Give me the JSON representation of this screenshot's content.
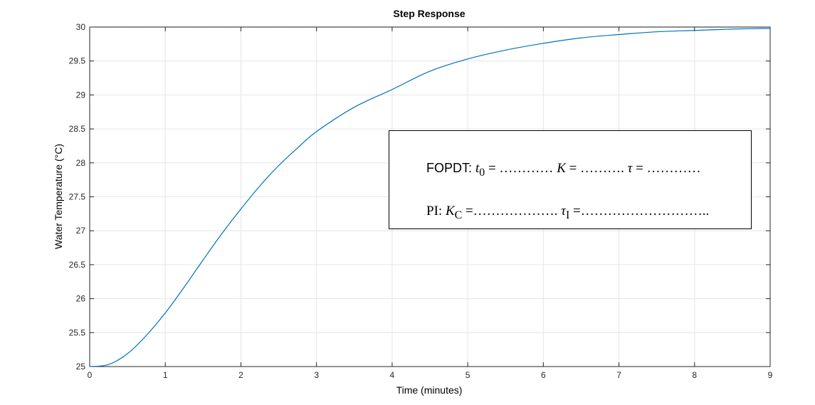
{
  "chart_data": {
    "type": "line",
    "title": "Step Response",
    "xlabel": "Time (minutes)",
    "ylabel": "Water Temperature (°C)",
    "xlim": [
      0,
      9
    ],
    "ylim": [
      25,
      30
    ],
    "xticks": [
      0,
      1,
      2,
      3,
      4,
      5,
      6,
      7,
      8,
      9
    ],
    "yticks": [
      25,
      25.5,
      26,
      26.5,
      27,
      27.5,
      28,
      28.5,
      29,
      29.5,
      30
    ],
    "ytick_labels": [
      "25",
      "25.5",
      "26",
      "26.5",
      "27",
      "27.5",
      "28",
      "28.5",
      "29",
      "29.5",
      "30"
    ],
    "grid": true,
    "reference_line": {
      "y": 30,
      "style": "dotted"
    },
    "series": [
      {
        "color": "#0072BD",
        "x": [
          0,
          0.25,
          0.5,
          0.75,
          1.0,
          1.25,
          1.5,
          1.75,
          2.0,
          2.25,
          2.5,
          2.75,
          3.0,
          3.5,
          4.0,
          4.5,
          5.0,
          5.5,
          6.0,
          6.5,
          7.0,
          7.5,
          8.0,
          8.5,
          9.0
        ],
        "y": [
          25.0,
          25.03,
          25.19,
          25.46,
          25.79,
          26.17,
          26.57,
          26.96,
          27.32,
          27.66,
          27.96,
          28.22,
          28.46,
          28.82,
          29.08,
          29.35,
          29.53,
          29.66,
          29.76,
          29.84,
          29.89,
          29.93,
          29.95,
          29.97,
          29.98
        ]
      }
    ]
  },
  "annotation": {
    "line1_prefix": "FOPDT: ",
    "line1_math_t0": "t",
    "line1_math_t0_sub": "0",
    "line1_rest1": " = ………… ",
    "line1_math_k": "K",
    "line1_rest2": " = ………. ",
    "line1_math_tau": "τ",
    "line1_rest3": " = …………",
    "line2_prefix": "PI:    ",
    "line2_math_kc": "K",
    "line2_math_kc_sub": "C",
    "line2_rest1": " =………………. ",
    "line2_math_taui": "τ",
    "line2_math_taui_sub": "I",
    "line2_rest2": " =……………………….."
  }
}
